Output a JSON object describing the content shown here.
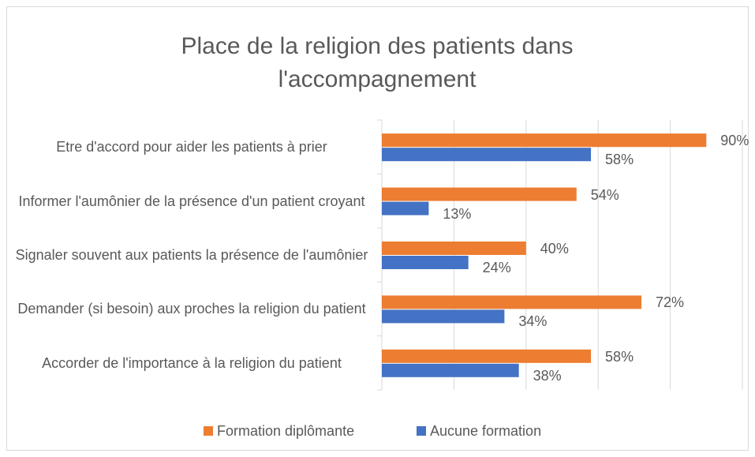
{
  "chart_data": {
    "type": "bar",
    "orientation": "horizontal",
    "title": "Place de la religion des patients dans l'accompagnement",
    "categories": [
      "Etre d'accord pour aider les patients à prier",
      "Informer l'aumônier de la présence d'un patient croyant",
      "Signaler souvent aux patients la présence de l'aumônier",
      "Demander (si besoin) aux proches la religion du patient",
      "Accorder de l'importance à la religion du patient"
    ],
    "series": [
      {
        "name": "Formation diplômante",
        "color": "#ED7D31",
        "values": [
          90,
          54,
          40,
          72,
          58
        ],
        "value_labels": [
          "90%",
          "54%",
          "40%",
          "72%",
          "58%"
        ]
      },
      {
        "name": "Aucune formation",
        "color": "#4472C4",
        "values": [
          58,
          13,
          24,
          34,
          38
        ],
        "value_labels": [
          "58%",
          "13%",
          "24%",
          "34%",
          "38%"
        ]
      }
    ],
    "xlim": [
      0,
      100
    ],
    "xticks": [
      0,
      20,
      40,
      60,
      80,
      100
    ],
    "grid": true,
    "legend": "bottom"
  }
}
